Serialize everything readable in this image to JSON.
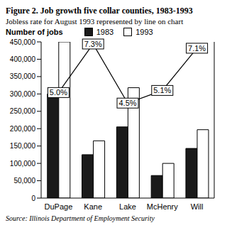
{
  "chart_data": {
    "type": "bar",
    "title": "Figure 2. Job growth five collar counties, 1983-1993",
    "subtitle": "Jobless rate for August 1993 represented by line on chart",
    "y_label": "Number of jobs",
    "source": "Source: Illinois Department of Employment Security",
    "categories": [
      "DuPage",
      "Kane",
      "Lake",
      "McHenry",
      "Will"
    ],
    "series": [
      {
        "name": "1983",
        "color": "#1a1a1a",
        "values": [
          300000,
          125000,
          205000,
          65000,
          143000
        ]
      },
      {
        "name": "1993",
        "color": "#ffffff",
        "values": [
          450000,
          165000,
          318000,
          100000,
          197000
        ]
      },
      {
        "type": "line",
        "axis": "y2",
        "color": "#000000",
        "values": [
          5.0,
          7.3,
          4.5,
          5.1,
          7.1
        ],
        "value_labels": [
          "5.0%",
          "7.3%",
          "4.5%",
          "5.1%",
          "7.1%"
        ],
        "data_labels": true
      }
    ],
    "ylim": [
      0,
      450000
    ],
    "yticks": [
      0,
      {
        "value": 50000,
        "label": "50,000"
      },
      {
        "value": 100000,
        "label": "100,000"
      },
      {
        "value": 150000,
        "label": "150,000"
      },
      {
        "value": 200000,
        "label": "200,000"
      },
      {
        "value": 250000,
        "label": "250,000"
      },
      {
        "value": 300000,
        "label": "300,000"
      },
      {
        "value": 350000,
        "label": "350,000"
      },
      {
        "value": 400000,
        "label": "400,000"
      },
      {
        "value": 450000,
        "label": "450,000"
      }
    ],
    "y2lim": [
      0,
      7.4
    ],
    "y2ticks": [],
    "grid": false,
    "legend": "top"
  }
}
